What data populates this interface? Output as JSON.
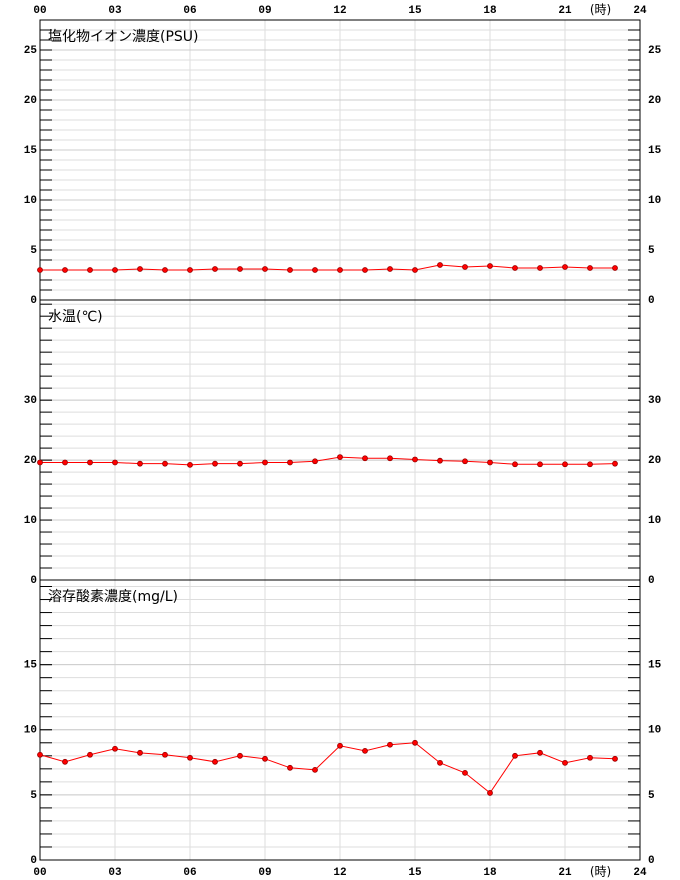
{
  "chart_data": [
    {
      "type": "line",
      "title": "塩化物イオン濃度(PSU)",
      "x": [
        0,
        1,
        2,
        3,
        4,
        5,
        6,
        7,
        8,
        9,
        10,
        11,
        12,
        13,
        14,
        15,
        16,
        17,
        18,
        19,
        20,
        21,
        22,
        23
      ],
      "xlim": [
        0,
        24
      ],
      "xticks": [
        {
          "value": 0,
          "label": "00"
        },
        {
          "value": 3,
          "label": "03"
        },
        {
          "value": 6,
          "label": "06"
        },
        {
          "value": 9,
          "label": "09"
        },
        12,
        15,
        18,
        21,
        24
      ],
      "xlabel": "(時)",
      "xaxis_position": "top",
      "series": [
        {
          "color": "#ff0000",
          "values": [
            3.0,
            3.0,
            3.0,
            3.0,
            3.1,
            3.0,
            3.0,
            3.1,
            3.1,
            3.1,
            3.0,
            3.0,
            3.0,
            3.0,
            3.1,
            3.0,
            3.5,
            3.3,
            3.4,
            3.2,
            3.2,
            3.3,
            3.2,
            3.2
          ]
        }
      ],
      "ylim": [
        0,
        28
      ],
      "yticks": [
        0,
        5,
        10,
        15,
        20,
        25
      ],
      "grid": true
    },
    {
      "type": "line",
      "title": "水温(℃)",
      "x": [
        0,
        1,
        2,
        3,
        4,
        5,
        6,
        7,
        8,
        9,
        10,
        11,
        12,
        13,
        14,
        15,
        16,
        17,
        18,
        19,
        20,
        21,
        22,
        23
      ],
      "xlim": [
        0,
        24
      ],
      "series": [
        {
          "color": "#ff0000",
          "values": [
            19.6,
            19.6,
            19.6,
            19.6,
            19.4,
            19.4,
            19.2,
            19.4,
            19.4,
            19.6,
            19.6,
            19.8,
            20.5,
            20.3,
            20.3,
            20.1,
            19.9,
            19.8,
            19.6,
            19.3,
            19.3,
            19.3,
            19.3,
            19.4
          ]
        }
      ],
      "ylim": [
        0,
        46.7
      ],
      "yticks": [
        0,
        10,
        20,
        30
      ],
      "grid": true
    },
    {
      "type": "line",
      "title": "溶存酸素濃度(mg/L)",
      "x": [
        0,
        1,
        2,
        3,
        4,
        5,
        6,
        7,
        8,
        9,
        10,
        11,
        12,
        13,
        14,
        15,
        16,
        17,
        18,
        19,
        20,
        21,
        22,
        23
      ],
      "xlim": [
        0,
        24
      ],
      "xticks": [
        {
          "value": 0,
          "label": "00"
        },
        {
          "value": 3,
          "label": "03"
        },
        {
          "value": 6,
          "label": "06"
        },
        {
          "value": 9,
          "label": "09"
        },
        12,
        15,
        18,
        21,
        24
      ],
      "xlabel": "(時)",
      "xaxis_position": "bottom",
      "series": [
        {
          "color": "#ff0000",
          "values": [
            8.08,
            7.54,
            8.08,
            8.54,
            8.23,
            8.08,
            7.85,
            7.54,
            8.0,
            7.77,
            7.08,
            6.92,
            8.77,
            8.38,
            8.85,
            9.0,
            7.46,
            6.69,
            5.15,
            8.0,
            8.23,
            7.46,
            7.85,
            7.77
          ]
        }
      ],
      "ylim": [
        0,
        21.5
      ],
      "yticks": [
        0,
        5,
        10,
        15
      ],
      "grid": true
    }
  ]
}
